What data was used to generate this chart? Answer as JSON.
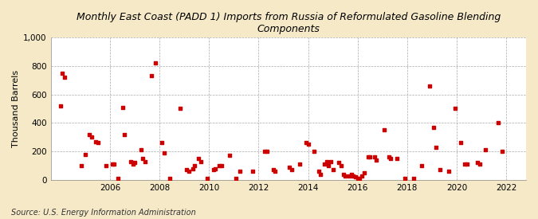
{
  "title": "Monthly East Coast (PADD 1) Imports from Russia of Reformulated Gasoline Blending\nComponents",
  "ylabel": "Thousand Barrels",
  "source": "Source: U.S. Energy Information Administration",
  "figure_facecolor": "#f5e9c8",
  "axes_facecolor": "#ffffff",
  "marker_color": "#cc0000",
  "xlim": [
    2003.6,
    2022.8
  ],
  "ylim": [
    0,
    1000
  ],
  "yticks": [
    0,
    200,
    400,
    600,
    800,
    1000
  ],
  "xticks": [
    2006,
    2008,
    2010,
    2012,
    2014,
    2016,
    2018,
    2020,
    2022
  ],
  "data": [
    [
      2004.0,
      520
    ],
    [
      2004.08,
      750
    ],
    [
      2004.17,
      720
    ],
    [
      2004.83,
      100
    ],
    [
      2005.0,
      180
    ],
    [
      2005.17,
      320
    ],
    [
      2005.25,
      300
    ],
    [
      2005.42,
      270
    ],
    [
      2005.5,
      260
    ],
    [
      2005.83,
      100
    ],
    [
      2006.08,
      110
    ],
    [
      2006.17,
      110
    ],
    [
      2006.33,
      10
    ],
    [
      2006.5,
      510
    ],
    [
      2006.58,
      320
    ],
    [
      2006.83,
      130
    ],
    [
      2006.92,
      110
    ],
    [
      2007.0,
      120
    ],
    [
      2007.25,
      210
    ],
    [
      2007.33,
      150
    ],
    [
      2007.42,
      130
    ],
    [
      2007.67,
      730
    ],
    [
      2007.83,
      820
    ],
    [
      2008.08,
      260
    ],
    [
      2008.17,
      190
    ],
    [
      2008.42,
      10
    ],
    [
      2008.83,
      500
    ],
    [
      2009.08,
      70
    ],
    [
      2009.17,
      60
    ],
    [
      2009.33,
      80
    ],
    [
      2009.42,
      100
    ],
    [
      2009.58,
      150
    ],
    [
      2009.67,
      130
    ],
    [
      2009.92,
      10
    ],
    [
      2010.17,
      70
    ],
    [
      2010.25,
      80
    ],
    [
      2010.42,
      100
    ],
    [
      2010.5,
      100
    ],
    [
      2010.83,
      170
    ],
    [
      2011.08,
      10
    ],
    [
      2011.25,
      60
    ],
    [
      2011.75,
      60
    ],
    [
      2012.25,
      200
    ],
    [
      2012.33,
      200
    ],
    [
      2012.58,
      70
    ],
    [
      2012.67,
      60
    ],
    [
      2013.25,
      90
    ],
    [
      2013.33,
      70
    ],
    [
      2013.67,
      110
    ],
    [
      2013.92,
      260
    ],
    [
      2014.0,
      250
    ],
    [
      2014.25,
      200
    ],
    [
      2014.42,
      60
    ],
    [
      2014.5,
      40
    ],
    [
      2014.67,
      110
    ],
    [
      2014.75,
      130
    ],
    [
      2014.83,
      100
    ],
    [
      2014.92,
      130
    ],
    [
      2015.0,
      70
    ],
    [
      2015.25,
      120
    ],
    [
      2015.33,
      100
    ],
    [
      2015.42,
      40
    ],
    [
      2015.5,
      30
    ],
    [
      2015.67,
      30
    ],
    [
      2015.75,
      40
    ],
    [
      2015.83,
      30
    ],
    [
      2015.92,
      20
    ],
    [
      2016.0,
      10
    ],
    [
      2016.08,
      10
    ],
    [
      2016.17,
      30
    ],
    [
      2016.25,
      50
    ],
    [
      2016.42,
      160
    ],
    [
      2016.5,
      160
    ],
    [
      2016.67,
      160
    ],
    [
      2016.75,
      140
    ],
    [
      2017.08,
      350
    ],
    [
      2017.25,
      160
    ],
    [
      2017.33,
      150
    ],
    [
      2017.58,
      150
    ],
    [
      2017.92,
      10
    ],
    [
      2018.25,
      10
    ],
    [
      2018.58,
      100
    ],
    [
      2018.92,
      660
    ],
    [
      2019.08,
      370
    ],
    [
      2019.17,
      230
    ],
    [
      2019.33,
      70
    ],
    [
      2019.67,
      60
    ],
    [
      2019.92,
      500
    ],
    [
      2020.17,
      260
    ],
    [
      2020.33,
      110
    ],
    [
      2020.42,
      110
    ],
    [
      2020.83,
      120
    ],
    [
      2020.92,
      110
    ],
    [
      2021.17,
      210
    ],
    [
      2021.67,
      400
    ],
    [
      2021.83,
      200
    ]
  ]
}
